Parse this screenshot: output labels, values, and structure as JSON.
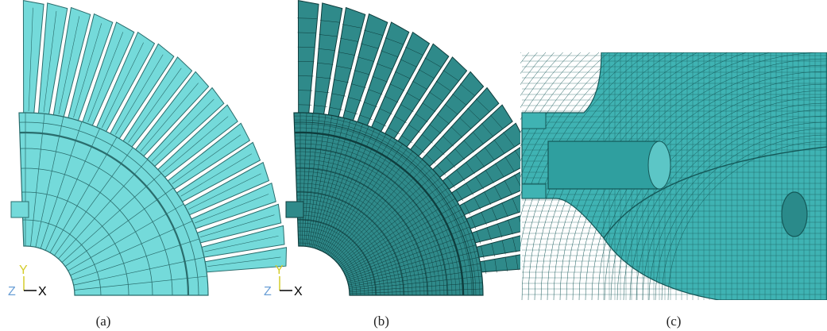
{
  "panels": [
    {
      "label": "(a)",
      "triad": {
        "y": "Y",
        "z": "Z",
        "x": "X"
      }
    },
    {
      "label": "(b)",
      "triad": {
        "y": "Y",
        "z": "Z",
        "x": "X"
      }
    },
    {
      "label": "(c)"
    }
  ]
}
